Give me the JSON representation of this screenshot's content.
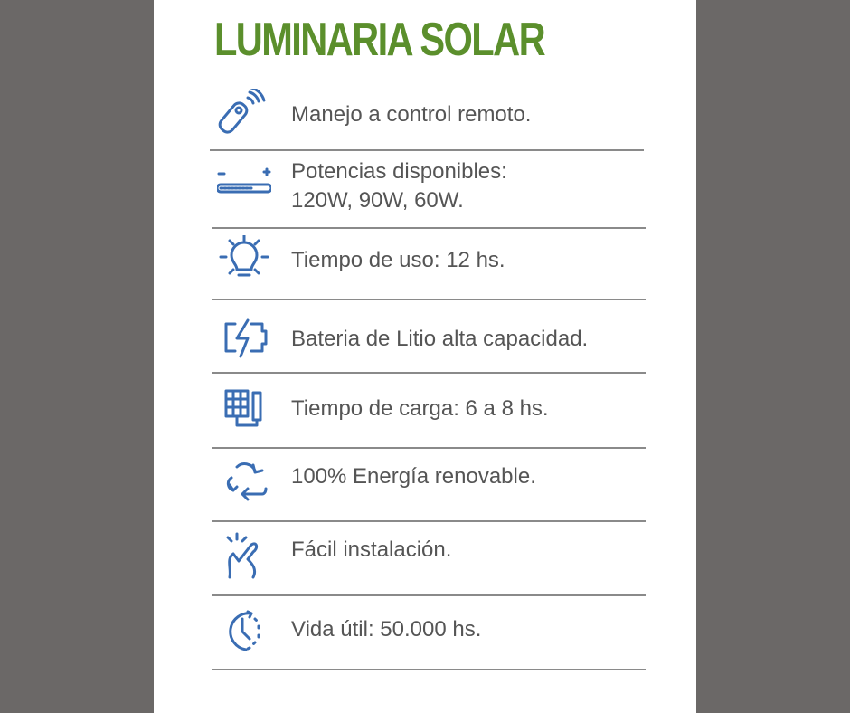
{
  "title": "LUMINARIA SOLAR",
  "colors": {
    "title": "#5b8f2c",
    "icons": "#3a6db3",
    "text": "#555555",
    "background": "#6b6867"
  },
  "features": [
    {
      "icon": "remote-control-icon",
      "lines": [
        "Manejo a control remoto."
      ]
    },
    {
      "icon": "power-level-icon",
      "lines": [
        "Potencias disponibles:",
        "120W, 90W, 60W."
      ]
    },
    {
      "icon": "light-bulb-icon",
      "lines": [
        "Tiempo de uso: 12 hs."
      ]
    },
    {
      "icon": "battery-charge-icon",
      "lines": [
        "Bateria de Litio alta capacidad."
      ]
    },
    {
      "icon": "solar-panel-battery-icon",
      "lines": [
        "Tiempo de carga: 6 a 8 hs."
      ]
    },
    {
      "icon": "recycle-icon",
      "lines": [
        "100% Energía renovable."
      ]
    },
    {
      "icon": "hand-click-icon",
      "lines": [
        "Fácil instalación."
      ]
    },
    {
      "icon": "clock-icon",
      "lines": [
        "Vida útil: 50.000 hs."
      ]
    }
  ]
}
